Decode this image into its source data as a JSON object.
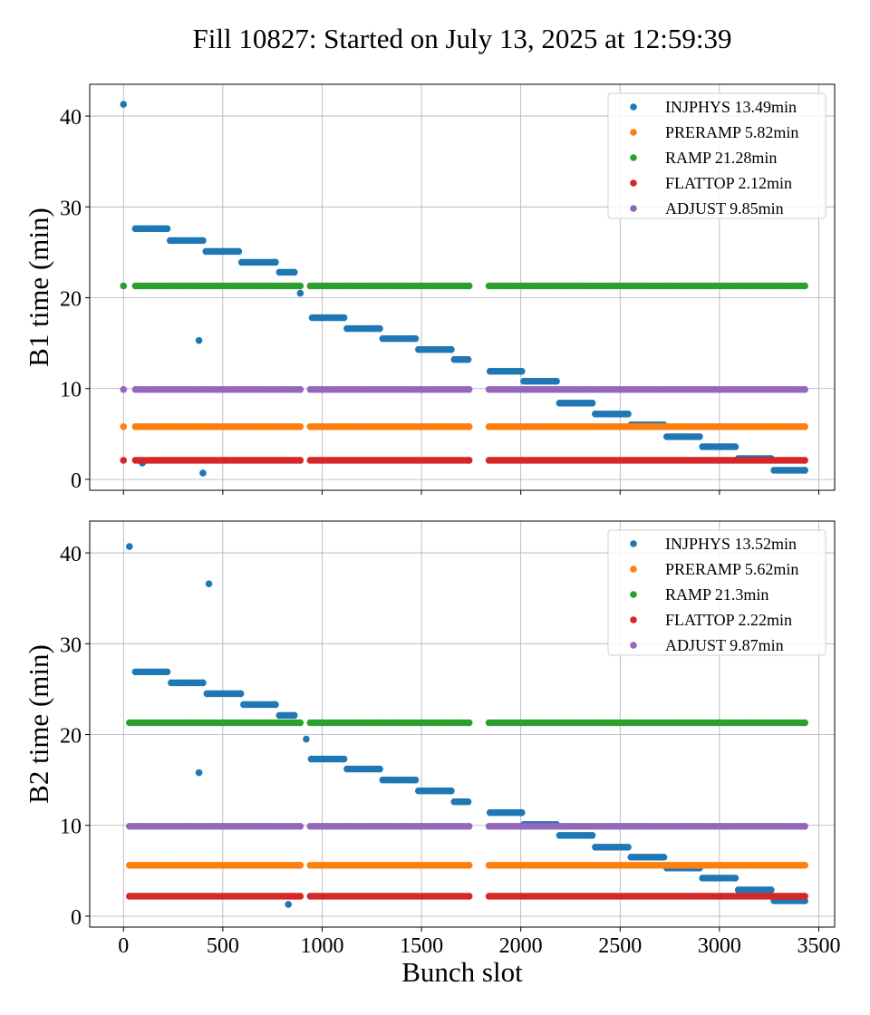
{
  "title": "Fill 10827: Started on July 13, 2025 at 12:59:39",
  "colors": {
    "INJPHYS": "#1f77b4",
    "PRERAMP": "#ff7f0e",
    "RAMP": "#2ca02c",
    "FLATTOP": "#d62728",
    "ADJUST": "#9467bd"
  },
  "chart_data": [
    {
      "type": "scatter",
      "ylabel": "B1 time (min)",
      "xlabel": "",
      "xlim": [
        -170,
        3580
      ],
      "ylim": [
        -1.2,
        43.5
      ],
      "xticks": [
        0,
        500,
        1000,
        1500,
        2000,
        2500,
        3000,
        3500
      ],
      "yticks": [
        0,
        10,
        20,
        30,
        40
      ],
      "show_xtick_labels": false,
      "grid": true,
      "legend_position": "top-right",
      "gaps": [
        [
          890,
          940
        ],
        [
          1740,
          1840
        ]
      ],
      "series": [
        {
          "key": "INJPHYS",
          "name": "INJPHYS 13.49min",
          "segments": [
            {
              "x0": 60,
              "x1": 220,
              "y": 27.6
            },
            {
              "x0": 235,
              "x1": 400,
              "y": 26.3
            },
            {
              "x0": 415,
              "x1": 580,
              "y": 25.1
            },
            {
              "x0": 595,
              "x1": 765,
              "y": 23.9
            },
            {
              "x0": 785,
              "x1": 860,
              "y": 22.8
            },
            {
              "x0": 950,
              "x1": 1110,
              "y": 17.8
            },
            {
              "x0": 1125,
              "x1": 1290,
              "y": 16.6
            },
            {
              "x0": 1305,
              "x1": 1470,
              "y": 15.5
            },
            {
              "x0": 1485,
              "x1": 1650,
              "y": 14.3
            },
            {
              "x0": 1665,
              "x1": 1735,
              "y": 13.2
            },
            {
              "x0": 1845,
              "x1": 2005,
              "y": 11.9
            },
            {
              "x0": 2015,
              "x1": 2180,
              "y": 10.8
            },
            {
              "x0": 2195,
              "x1": 2360,
              "y": 8.4
            },
            {
              "x0": 2375,
              "x1": 2540,
              "y": 7.2
            },
            {
              "x0": 2555,
              "x1": 2720,
              "y": 6.0
            },
            {
              "x0": 2735,
              "x1": 2900,
              "y": 4.7
            },
            {
              "x0": 2915,
              "x1": 3080,
              "y": 3.6
            },
            {
              "x0": 3095,
              "x1": 3260,
              "y": 2.3
            },
            {
              "x0": 3275,
              "x1": 3430,
              "y": 1.0
            }
          ],
          "points": [
            {
              "x": 0,
              "y": 41.3
            },
            {
              "x": 95,
              "y": 1.8
            },
            {
              "x": 380,
              "y": 15.3
            },
            {
              "x": 400,
              "y": 0.7
            },
            {
              "x": 890,
              "y": 20.5
            }
          ]
        },
        {
          "key": "PRERAMP",
          "name": "PRERAMP 5.82min",
          "segments": [
            {
              "x0": 60,
              "x1": 890,
              "y": 5.8
            },
            {
              "x0": 940,
              "x1": 1740,
              "y": 5.8
            },
            {
              "x0": 1840,
              "x1": 3430,
              "y": 5.8
            }
          ],
          "points": [
            {
              "x": 0,
              "y": 5.8
            }
          ]
        },
        {
          "key": "RAMP",
          "name": "RAMP 21.28min",
          "segments": [
            {
              "x0": 60,
              "x1": 890,
              "y": 21.3
            },
            {
              "x0": 940,
              "x1": 1740,
              "y": 21.3
            },
            {
              "x0": 1840,
              "x1": 3430,
              "y": 21.3
            }
          ],
          "points": [
            {
              "x": 0,
              "y": 21.3
            }
          ]
        },
        {
          "key": "FLATTOP",
          "name": "FLATTOP 2.12min",
          "segments": [
            {
              "x0": 60,
              "x1": 890,
              "y": 2.1
            },
            {
              "x0": 940,
              "x1": 1740,
              "y": 2.1
            },
            {
              "x0": 1840,
              "x1": 3430,
              "y": 2.1
            }
          ],
          "points": [
            {
              "x": 0,
              "y": 2.1
            }
          ]
        },
        {
          "key": "ADJUST",
          "name": "ADJUST 9.85min",
          "segments": [
            {
              "x0": 60,
              "x1": 890,
              "y": 9.9
            },
            {
              "x0": 940,
              "x1": 1740,
              "y": 9.9
            },
            {
              "x0": 1840,
              "x1": 3430,
              "y": 9.9
            }
          ],
          "points": [
            {
              "x": 0,
              "y": 9.9
            }
          ]
        }
      ]
    },
    {
      "type": "scatter",
      "ylabel": "B2 time (min)",
      "xlabel": "Bunch slot",
      "xlim": [
        -170,
        3580
      ],
      "ylim": [
        -1.2,
        43.5
      ],
      "xticks": [
        0,
        500,
        1000,
        1500,
        2000,
        2500,
        3000,
        3500
      ],
      "yticks": [
        0,
        10,
        20,
        30,
        40
      ],
      "show_xtick_labels": true,
      "grid": true,
      "legend_position": "top-right",
      "gaps": [
        [
          890,
          940
        ],
        [
          1740,
          1840
        ]
      ],
      "series": [
        {
          "key": "INJPHYS",
          "name": "INJPHYS 13.52min",
          "segments": [
            {
              "x0": 60,
              "x1": 220,
              "y": 26.9
            },
            {
              "x0": 240,
              "x1": 400,
              "y": 25.7
            },
            {
              "x0": 420,
              "x1": 590,
              "y": 24.5
            },
            {
              "x0": 605,
              "x1": 765,
              "y": 23.3
            },
            {
              "x0": 785,
              "x1": 860,
              "y": 22.1
            },
            {
              "x0": 945,
              "x1": 1110,
              "y": 17.3
            },
            {
              "x0": 1125,
              "x1": 1290,
              "y": 16.2
            },
            {
              "x0": 1305,
              "x1": 1470,
              "y": 15.0
            },
            {
              "x0": 1485,
              "x1": 1650,
              "y": 13.8
            },
            {
              "x0": 1665,
              "x1": 1735,
              "y": 12.6
            },
            {
              "x0": 1845,
              "x1": 2005,
              "y": 11.4
            },
            {
              "x0": 2015,
              "x1": 2180,
              "y": 10.1
            },
            {
              "x0": 2195,
              "x1": 2360,
              "y": 8.9
            },
            {
              "x0": 2375,
              "x1": 2540,
              "y": 7.6
            },
            {
              "x0": 2555,
              "x1": 2720,
              "y": 6.5
            },
            {
              "x0": 2735,
              "x1": 2900,
              "y": 5.3
            },
            {
              "x0": 2915,
              "x1": 3080,
              "y": 4.2
            },
            {
              "x0": 3095,
              "x1": 3260,
              "y": 2.9
            },
            {
              "x0": 3275,
              "x1": 3430,
              "y": 1.7
            }
          ],
          "points": [
            {
              "x": 30,
              "y": 40.7
            },
            {
              "x": 380,
              "y": 15.8
            },
            {
              "x": 430,
              "y": 36.6
            },
            {
              "x": 830,
              "y": 1.3
            },
            {
              "x": 920,
              "y": 19.5
            }
          ]
        },
        {
          "key": "PRERAMP",
          "name": "PRERAMP 5.62min",
          "segments": [
            {
              "x0": 30,
              "x1": 890,
              "y": 5.6
            },
            {
              "x0": 940,
              "x1": 1740,
              "y": 5.6
            },
            {
              "x0": 1840,
              "x1": 3430,
              "y": 5.6
            }
          ],
          "points": []
        },
        {
          "key": "RAMP",
          "name": "RAMP 21.3min",
          "segments": [
            {
              "x0": 30,
              "x1": 890,
              "y": 21.3
            },
            {
              "x0": 940,
              "x1": 1740,
              "y": 21.3
            },
            {
              "x0": 1840,
              "x1": 3430,
              "y": 21.3
            }
          ],
          "points": []
        },
        {
          "key": "FLATTOP",
          "name": "FLATTOP 2.22min",
          "segments": [
            {
              "x0": 30,
              "x1": 890,
              "y": 2.2
            },
            {
              "x0": 940,
              "x1": 1740,
              "y": 2.2
            },
            {
              "x0": 1840,
              "x1": 3430,
              "y": 2.2
            }
          ],
          "points": []
        },
        {
          "key": "ADJUST",
          "name": "ADJUST 9.87min",
          "segments": [
            {
              "x0": 30,
              "x1": 890,
              "y": 9.9
            },
            {
              "x0": 940,
              "x1": 1740,
              "y": 9.9
            },
            {
              "x0": 1840,
              "x1": 3430,
              "y": 9.9
            }
          ],
          "points": []
        }
      ]
    }
  ]
}
